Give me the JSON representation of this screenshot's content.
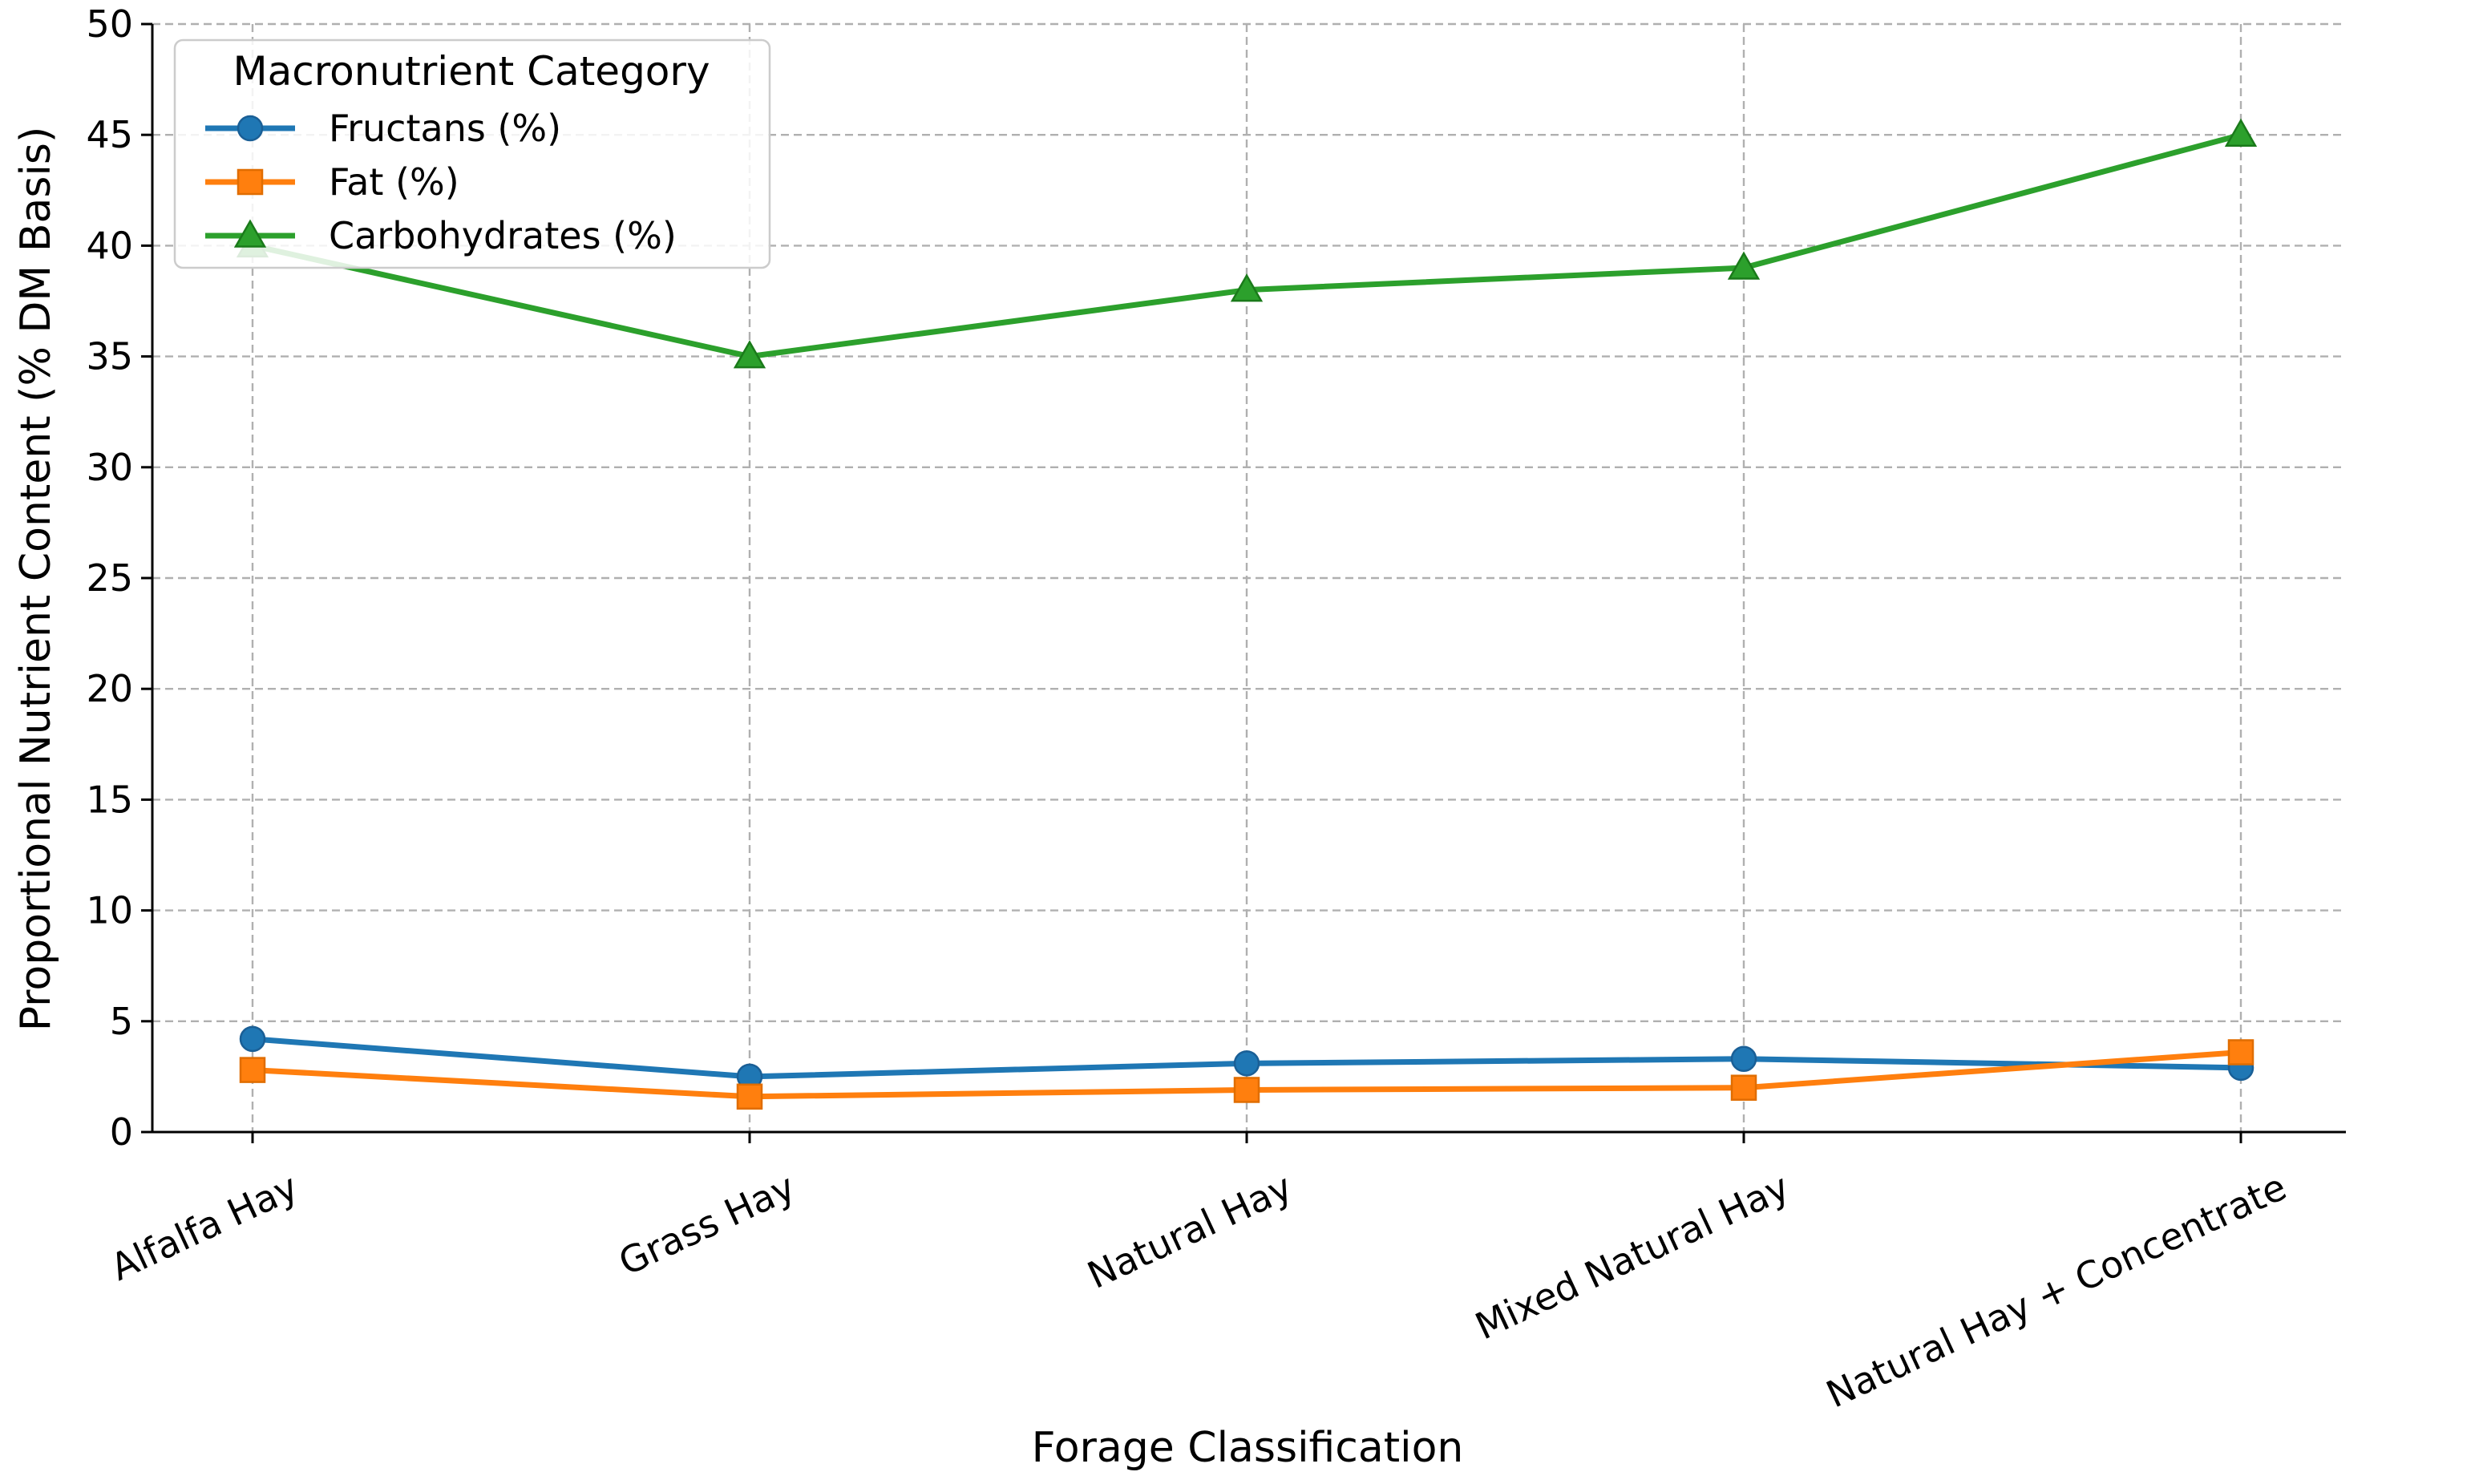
{
  "chart_data": {
    "type": "line",
    "categories": [
      "Alfalfa Hay",
      "Grass Hay",
      "Natural Hay",
      "Mixed Natural Hay",
      "Natural Hay + Concentrate"
    ],
    "series": [
      {
        "name": "Fructans (%)",
        "values": [
          4.2,
          2.5,
          3.1,
          3.3,
          2.9
        ],
        "color": "#1f77b4",
        "marker": "circle"
      },
      {
        "name": "Fat (%)",
        "values": [
          2.8,
          1.6,
          1.9,
          2.0,
          3.6
        ],
        "color": "#ff7f0e",
        "marker": "square"
      },
      {
        "name": "Carbohydrates (%)",
        "values": [
          40,
          35,
          38,
          39,
          45
        ],
        "color": "#2ca02c",
        "marker": "triangle"
      }
    ],
    "xlabel": "Forage Classification",
    "ylabel": "Proportional Nutrient Content (% DM Basis)",
    "ylim": [
      0,
      50
    ],
    "yticks": [
      "0",
      "5",
      "10",
      "15",
      "20",
      "25",
      "30",
      "35",
      "40",
      "45",
      "50"
    ],
    "legend_title": "Macronutrient Category",
    "legend_position": "upper-left",
    "grid": true
  }
}
